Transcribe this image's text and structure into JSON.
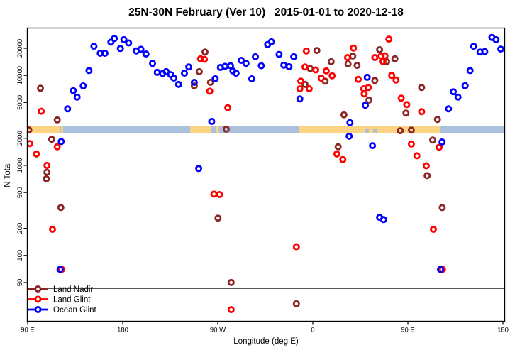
{
  "title": "25N-30N February (Ver 10)   2015-01-01 to 2020-12-18",
  "legend": {
    "items": [
      {
        "label": "Land Nadir",
        "color": "#8B2525"
      },
      {
        "label": "Land Glint",
        "color": "#FF0000"
      },
      {
        "label": "Ocean Glint",
        "color": "#0000FF"
      }
    ]
  },
  "chart_data": {
    "type": "scatter",
    "title": "25N-30N February (Ver 10)   2015-01-01 to 2020-12-18",
    "xlabel": "Longitude (deg E)",
    "ylabel": "N Total",
    "x_axis": {
      "note": "x = degrees eastward from 90E; axis spans 450 degrees (90E..180..90W..0..90E..180)",
      "range": [
        0,
        452
      ],
      "ticks": [
        0,
        90,
        180,
        270,
        360,
        450
      ],
      "tick_labels": [
        "90 E",
        "180",
        "90 W",
        "0",
        "90 E",
        "180"
      ]
    },
    "y_axis": {
      "scale": "log10",
      "range": [
        40,
        33000
      ],
      "ticks": [
        50,
        100,
        200,
        500,
        1000,
        2000,
        5000,
        10000,
        20000
      ],
      "tick_labels": [
        "50",
        "100",
        "200",
        "500",
        "1000",
        "2000",
        "5000",
        "10000",
        "20000"
      ]
    },
    "reference_line": {
      "value": 43,
      "color": "#575757"
    },
    "map_band": {
      "value_top": 2760,
      "value_bottom": 2270,
      "ocean_color": "#AAC0DC",
      "land_color": "#FBD383",
      "land_segments_deg": [
        [
          0,
          30.2
        ],
        [
          31.5,
          33.5
        ],
        [
          153.8,
          173.3
        ],
        [
          178.5,
          181
        ],
        [
          257.2,
          390.9
        ]
      ],
      "ocean_patches_deg": [
        [
          319,
          323
        ],
        [
          327,
          331
        ]
      ]
    },
    "series": [
      {
        "name": "Land Nadir",
        "color": "#8B2525",
        "points": [
          [
            12.1,
            7200
          ],
          [
            28.0,
            3200
          ],
          [
            1.1,
            2480
          ],
          [
            22.8,
            1950
          ],
          [
            18.3,
            840
          ],
          [
            17.7,
            710
          ],
          [
            31.4,
            340
          ],
          [
            167.9,
            18200
          ],
          [
            162.5,
            11000
          ],
          [
            157.8,
            7640
          ],
          [
            173.1,
            8360
          ],
          [
            188.0,
            2530
          ],
          [
            180.2,
            260
          ],
          [
            192.6,
            50
          ],
          [
            273.8,
            18900
          ],
          [
            287.3,
            14200
          ],
          [
            307.8,
            16400
          ],
          [
            303.4,
            13400
          ],
          [
            311.9,
            12900
          ],
          [
            333.2,
            19300
          ],
          [
            267.5,
            11900
          ],
          [
            281.6,
            8630
          ],
          [
            262.6,
            7930
          ],
          [
            328.7,
            8790
          ],
          [
            323.1,
            5310
          ],
          [
            299.5,
            3650
          ],
          [
            294.0,
            1610
          ],
          [
            347.7,
            15300
          ],
          [
            339.9,
            14200
          ],
          [
            373.0,
            7330
          ],
          [
            358.2,
            3810
          ],
          [
            388.0,
            3240
          ],
          [
            352.8,
            2430
          ],
          [
            363.3,
            2470
          ],
          [
            383.5,
            1910
          ],
          [
            378.3,
            770
          ],
          [
            392.5,
            340
          ],
          [
            254.4,
            29
          ]
        ]
      },
      {
        "name": "Land Glint",
        "color": "#FF0000",
        "points": [
          [
            12.8,
            4000
          ],
          [
            2.0,
            1750
          ],
          [
            8.3,
            1340
          ],
          [
            28.0,
            1610
          ],
          [
            18.3,
            1000
          ],
          [
            23.5,
            195
          ],
          [
            32.2,
            70
          ],
          [
            176.4,
            480
          ],
          [
            181.6,
            475
          ],
          [
            192.6,
            25
          ],
          [
            163.7,
            15300
          ],
          [
            167.4,
            15100
          ],
          [
            172.4,
            6680
          ],
          [
            189.4,
            4380
          ],
          [
            254.4,
            125
          ],
          [
            263.8,
            18700
          ],
          [
            308.5,
            20100
          ],
          [
            302.9,
            15800
          ],
          [
            328.7,
            15800
          ],
          [
            334.7,
            16400
          ],
          [
            338.3,
            16500
          ],
          [
            336.5,
            14250
          ],
          [
            262.6,
            12400
          ],
          [
            272.7,
            11500
          ],
          [
            282.7,
            11200
          ],
          [
            288.3,
            9910
          ],
          [
            277.9,
            9330
          ],
          [
            258.6,
            8630
          ],
          [
            257.7,
            7100
          ],
          [
            266.6,
            7100
          ],
          [
            313.0,
            9040
          ],
          [
            318.2,
            7100
          ],
          [
            322.6,
            7330
          ],
          [
            318.6,
            6220
          ],
          [
            342.0,
            25300
          ],
          [
            344.7,
            10000
          ],
          [
            348.8,
            8880
          ],
          [
            353.7,
            5580
          ],
          [
            358.9,
            4740
          ],
          [
            373.0,
            3950
          ],
          [
            389.6,
            1590
          ],
          [
            368.5,
            1280
          ],
          [
            377.4,
            990
          ],
          [
            363.3,
            1730
          ],
          [
            384.2,
            195
          ],
          [
            392.7,
            70
          ],
          [
            292.8,
            1340
          ],
          [
            298.4,
            1160
          ]
        ]
      },
      {
        "name": "Ocean Glint",
        "color": "#0000FF",
        "points": [
          [
            62.7,
            21100
          ],
          [
            68.7,
            17600
          ],
          [
            73.2,
            17600
          ],
          [
            78.8,
            23400
          ],
          [
            82.1,
            25700
          ],
          [
            87.8,
            19900
          ],
          [
            91.1,
            24900
          ],
          [
            95.6,
            22900
          ],
          [
            102.8,
            18700
          ],
          [
            107.2,
            19500
          ],
          [
            112.0,
            17300
          ],
          [
            58.0,
            11300
          ],
          [
            52.6,
            7640
          ],
          [
            43.2,
            6760
          ],
          [
            46.8,
            5740
          ],
          [
            37.8,
            4250
          ],
          [
            30.7,
            70
          ],
          [
            31.8,
            1840
          ],
          [
            118.2,
            13600
          ],
          [
            122.7,
            10800
          ],
          [
            127.8,
            10500
          ],
          [
            131.2,
            11000
          ],
          [
            135.5,
            10200
          ],
          [
            138.4,
            9330
          ],
          [
            142.9,
            7930
          ],
          [
            148.4,
            10600
          ],
          [
            152.5,
            12400
          ],
          [
            157.8,
            8360
          ],
          [
            177.5,
            9200
          ],
          [
            182.5,
            12250
          ],
          [
            186.9,
            12600
          ],
          [
            192.1,
            12800
          ],
          [
            194.3,
            11200
          ],
          [
            197.3,
            10600
          ],
          [
            202.2,
            14700
          ],
          [
            206.7,
            13600
          ],
          [
            212.2,
            9160
          ],
          [
            215.6,
            16100
          ],
          [
            221.2,
            12800
          ],
          [
            227.2,
            22000
          ],
          [
            174.2,
            3080
          ],
          [
            161.9,
            925
          ],
          [
            230.8,
            23600
          ],
          [
            238.0,
            17100
          ],
          [
            251.9,
            16100
          ],
          [
            242.5,
            13000
          ],
          [
            247.4,
            12500
          ],
          [
            257.7,
            5480
          ],
          [
            305.1,
            2990
          ],
          [
            304.4,
            2110
          ],
          [
            319.7,
            4660
          ],
          [
            321.5,
            9510
          ],
          [
            326.5,
            1660
          ],
          [
            333.2,
            265
          ],
          [
            337.0,
            250
          ],
          [
            422.3,
            21100
          ],
          [
            428.3,
            18200
          ],
          [
            432.8,
            18400
          ],
          [
            439.5,
            26400
          ],
          [
            443.5,
            24900
          ],
          [
            448.0,
            19600
          ],
          [
            418.9,
            11300
          ],
          [
            414.2,
            7670
          ],
          [
            403.0,
            6580
          ],
          [
            407.5,
            5740
          ],
          [
            398.5,
            4250
          ],
          [
            392.4,
            1820
          ],
          [
            390.9,
            70
          ]
        ]
      }
    ]
  }
}
